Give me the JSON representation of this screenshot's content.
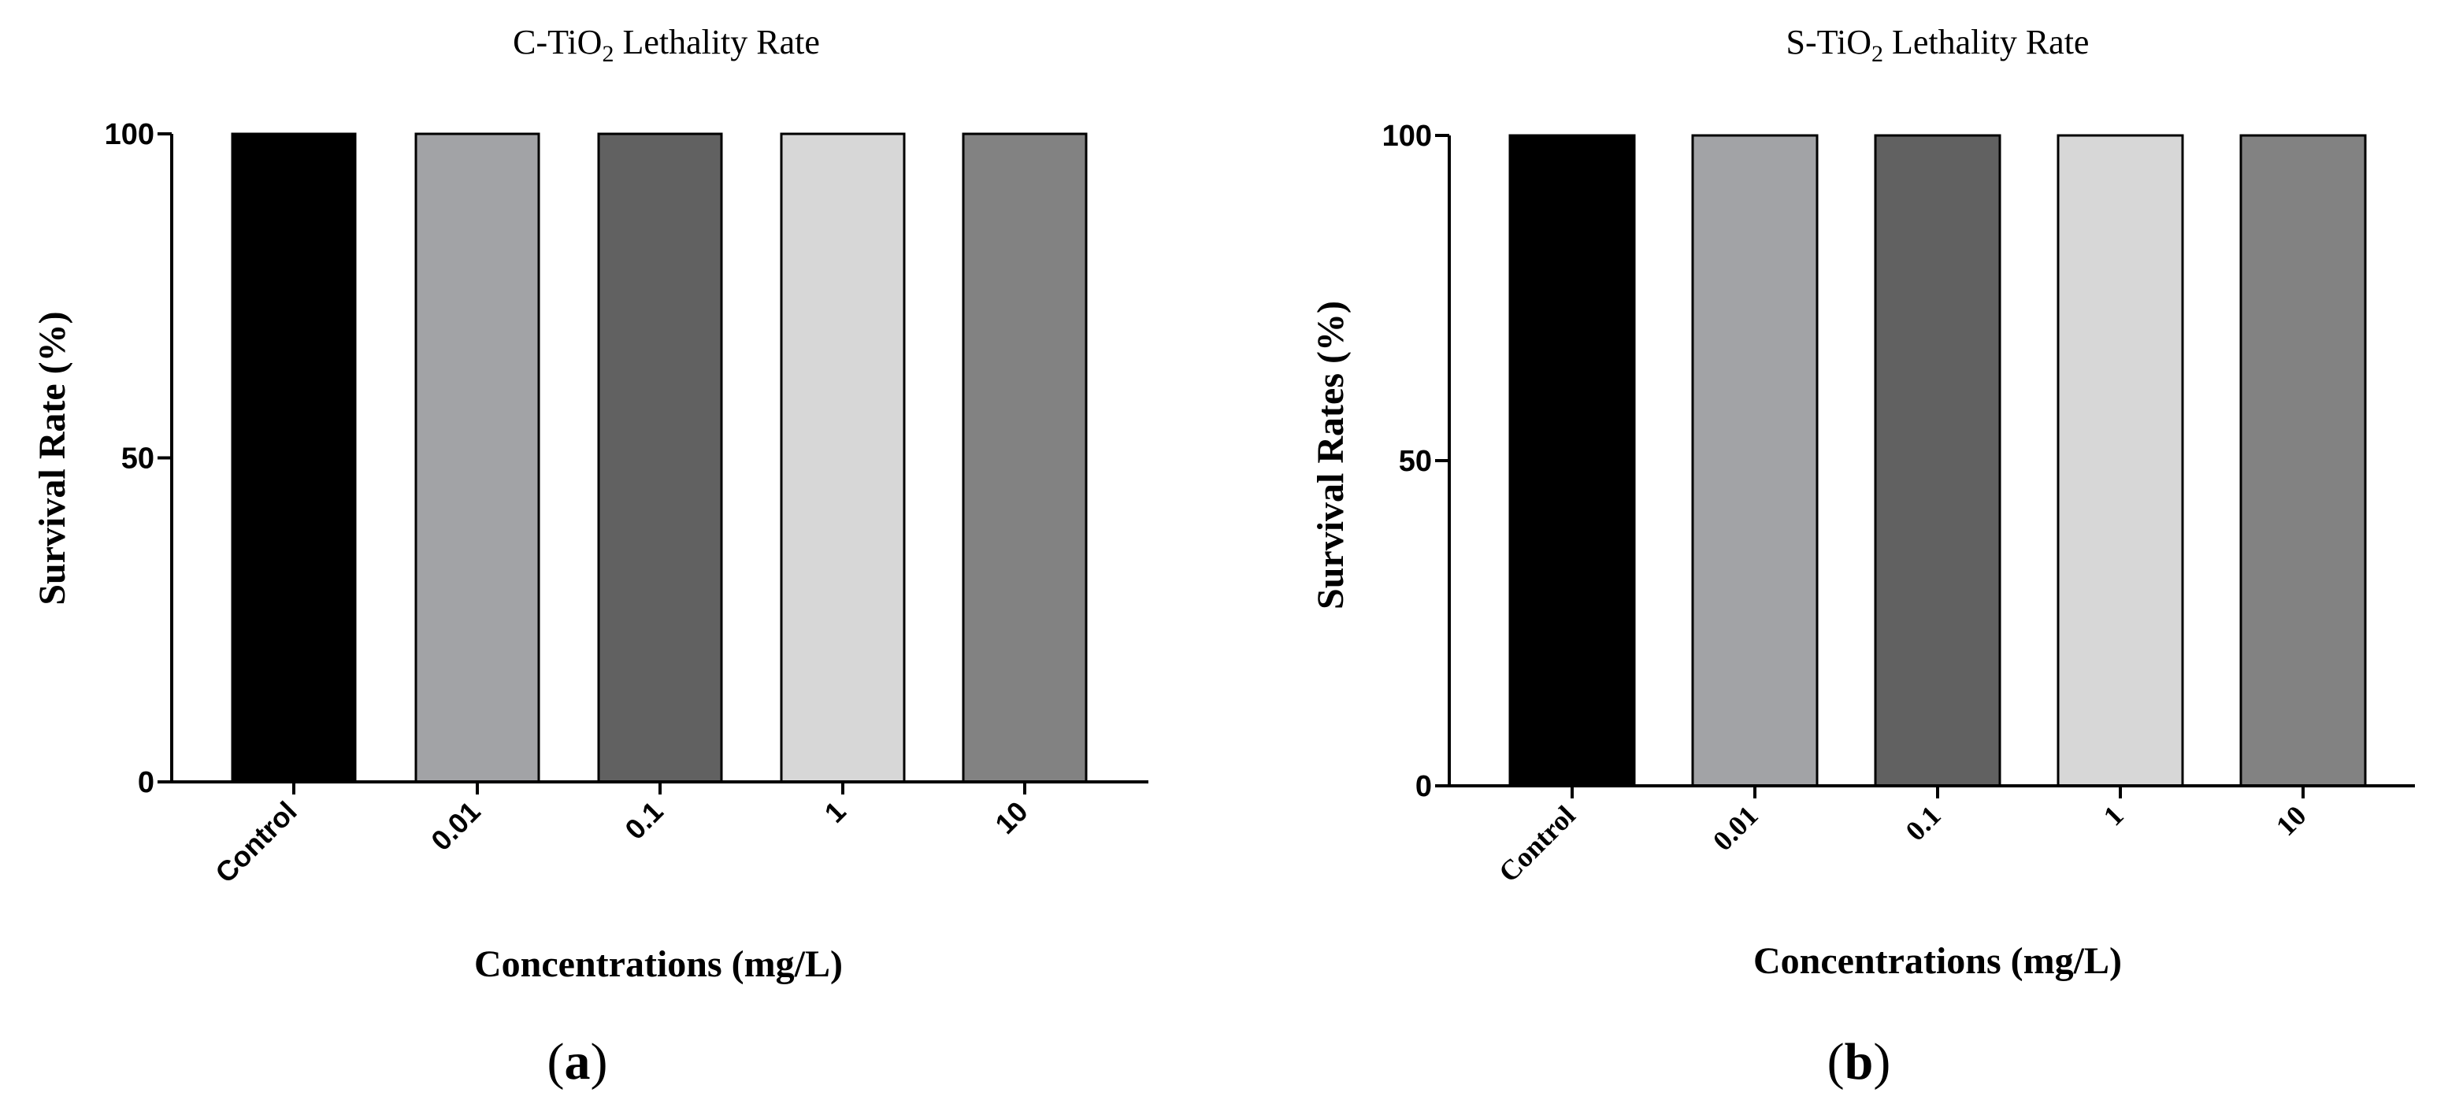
{
  "chart_data": [
    {
      "type": "bar",
      "panel": "a",
      "panel_label": "a",
      "title_prefix": "C-TiO",
      "title_subscript": "2",
      "title_suffix": " Lethality Rate",
      "xlabel": "Concentrations (mg/L)",
      "ylabel": "Survival Rate (%)",
      "categories": [
        "Control",
        "0.01",
        "0.1",
        "1",
        "10"
      ],
      "values": [
        100,
        100,
        100,
        100,
        100
      ],
      "bar_colors": [
        "#000000",
        "#a2a3a6",
        "#616161",
        "#d7d7d7",
        "#828282"
      ],
      "ylim": [
        0,
        100
      ],
      "yticks": [
        0,
        50,
        100
      ]
    },
    {
      "type": "bar",
      "panel": "b",
      "panel_label": "b",
      "title_prefix": "S-TiO",
      "title_subscript": "2",
      "title_suffix": " Lethality Rate",
      "xlabel": "Concentrations (mg/L)",
      "ylabel": "Survival Rates (%)",
      "categories": [
        "Control",
        "0.01",
        "0.1",
        "1",
        "10"
      ],
      "values": [
        100,
        100,
        100,
        100,
        100
      ],
      "bar_colors": [
        "#000000",
        "#a2a3a6",
        "#616161",
        "#d7d7d7",
        "#828282"
      ],
      "ylim": [
        0,
        100
      ],
      "yticks": [
        0,
        50,
        100
      ]
    }
  ]
}
